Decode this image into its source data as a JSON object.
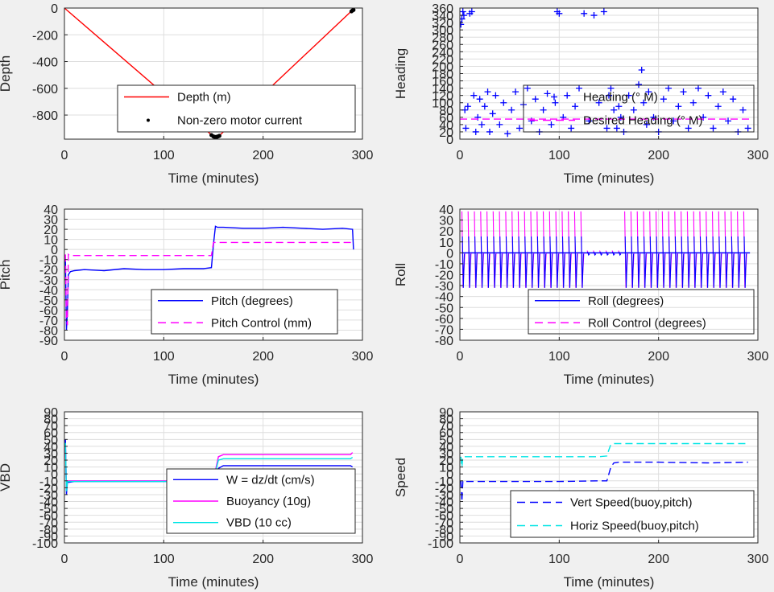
{
  "chart_data": [
    {
      "id": "depth",
      "type": "line",
      "xlabel": "Time (minutes)",
      "ylabel": "Depth",
      "xlim": [
        0,
        300
      ],
      "ylim": [
        -980,
        0
      ],
      "xticks": [
        0,
        100,
        200,
        300
      ],
      "yticks": [
        0,
        -200,
        -400,
        -600,
        -800
      ],
      "grid": true,
      "legend_location": "lower-right",
      "series": [
        {
          "name": "Depth (m)",
          "style": "solid",
          "color": "#ff0000",
          "marker": "none",
          "x": [
            0,
            150,
            152,
            155,
            290
          ],
          "y": [
            0,
            -960,
            -965,
            -960,
            -15
          ]
        },
        {
          "name": "Non-zero motor current",
          "style": "none",
          "color": "#000000",
          "marker": "dot",
          "x": [
            148,
            150,
            151,
            152,
            153,
            154,
            155,
            156,
            289,
            290,
            291
          ],
          "y": [
            -950,
            -960,
            -963,
            -965,
            -963,
            -962,
            -958,
            -955,
            -25,
            -18,
            -14
          ]
        }
      ]
    },
    {
      "id": "heading",
      "type": "scatter",
      "xlabel": "Time (minutes)",
      "ylabel": "Heading",
      "xlim": [
        0,
        300
      ],
      "ylim": [
        0,
        360
      ],
      "xticks": [
        0,
        100,
        200,
        300
      ],
      "yticks": [
        0,
        20,
        40,
        60,
        80,
        100,
        120,
        140,
        160,
        180,
        200,
        220,
        240,
        260,
        280,
        300,
        320,
        340,
        360
      ],
      "grid": true,
      "legend_location": "lower-right",
      "series": [
        {
          "name": "Heading (° M)",
          "style": "none",
          "color": "#0000ff",
          "marker": "plus",
          "x": [
            1,
            2,
            3,
            4,
            5,
            6,
            8,
            10,
            12,
            14,
            16,
            18,
            20,
            22,
            25,
            28,
            30,
            33,
            36,
            40,
            44,
            48,
            52,
            56,
            60,
            64,
            68,
            72,
            76,
            80,
            84,
            88,
            92,
            96,
            98,
            100,
            104,
            108,
            112,
            116,
            120,
            125,
            130,
            135,
            140,
            145,
            148,
            150,
            152,
            155,
            158,
            160,
            162,
            165,
            170,
            175,
            180,
            183,
            185,
            188,
            190,
            195,
            200,
            205,
            210,
            215,
            220,
            225,
            230,
            235,
            240,
            245,
            250,
            255,
            260,
            265,
            270,
            275,
            280,
            285,
            290
          ],
          "y": [
            315,
            330,
            350,
            340,
            80,
            30,
            90,
            345,
            350,
            120,
            20,
            60,
            110,
            40,
            90,
            130,
            20,
            70,
            120,
            40,
            100,
            15,
            80,
            130,
            30,
            95,
            140,
            50,
            110,
            20,
            80,
            125,
            40,
            100,
            350,
            345,
            60,
            120,
            30,
            90,
            140,
            345,
            50,
            340,
            100,
            350,
            30,
            120,
            140,
            80,
            30,
            90,
            60,
            20,
            120,
            80,
            150,
            190,
            100,
            40,
            130,
            60,
            20,
            110,
            140,
            50,
            90,
            130,
            30,
            100,
            140,
            60,
            120,
            30,
            90,
            130,
            50,
            110,
            20,
            80,
            30
          ]
        },
        {
          "name": "Desired Heading (° M)",
          "style": "dashed",
          "color": "#ff00ff",
          "marker": "none",
          "x": [
            0,
            50,
            100,
            150,
            200,
            250,
            295
          ],
          "y": [
            55,
            55,
            55,
            55,
            55,
            55,
            55
          ]
        }
      ]
    },
    {
      "id": "pitch",
      "type": "line",
      "xlabel": "Time (minutes)",
      "ylabel": "Pitch",
      "xlim": [
        0,
        300
      ],
      "ylim": [
        -90,
        40
      ],
      "xticks": [
        0,
        100,
        200,
        300
      ],
      "yticks": [
        40,
        30,
        20,
        10,
        0,
        -10,
        -20,
        -30,
        -40,
        -50,
        -60,
        -70,
        -80,
        -90
      ],
      "grid": true,
      "legend_location": "lower-right",
      "series": [
        {
          "name": "Pitch (degrees)",
          "style": "solid",
          "color": "#0000ff",
          "x": [
            1,
            2,
            3,
            4,
            6,
            10,
            20,
            40,
            60,
            80,
            100,
            120,
            140,
            148,
            150,
            152,
            154,
            160,
            180,
            200,
            220,
            240,
            260,
            280,
            290,
            291
          ],
          "y": [
            -10,
            -80,
            -60,
            -25,
            -22,
            -21,
            -20,
            -21,
            -19,
            -20,
            -20,
            -19,
            -19,
            -18,
            5,
            23,
            22,
            22,
            21,
            21,
            22,
            21,
            20,
            21,
            20,
            0
          ]
        },
        {
          "name": "Pitch Control (mm)",
          "style": "dashed",
          "color": "#ff00ff",
          "x": [
            1,
            2,
            3,
            4,
            5,
            148,
            150,
            155,
            290
          ],
          "y": [
            -5,
            -70,
            -75,
            -5,
            -6,
            -6,
            7,
            7,
            7
          ]
        }
      ]
    },
    {
      "id": "roll",
      "type": "line",
      "xlabel": "Time (minutes)",
      "ylabel": "Roll",
      "xlim": [
        0,
        300
      ],
      "ylim": [
        -80,
        40
      ],
      "xticks": [
        0,
        100,
        200,
        300
      ],
      "yticks": [
        40,
        30,
        20,
        10,
        0,
        -10,
        -20,
        -30,
        -40,
        -50,
        -60,
        -70,
        -80
      ],
      "grid": true,
      "legend_location": "lower-right",
      "series": [
        {
          "name": "Roll (degrees)",
          "style": "solid",
          "color": "#0000ff",
          "x": [],
          "y": []
        },
        {
          "name": "Roll Control (degrees)",
          "style": "dashed",
          "color": "#ff00ff",
          "x": [],
          "y": []
        }
      ]
    },
    {
      "id": "vbd",
      "type": "line",
      "xlabel": "Time (minutes)",
      "ylabel": "VBD",
      "xlim": [
        0,
        300
      ],
      "ylim": [
        -100,
        90
      ],
      "xticks": [
        0,
        100,
        200,
        300
      ],
      "yticks": [
        90,
        80,
        70,
        60,
        50,
        40,
        30,
        20,
        10,
        0,
        -10,
        -20,
        -30,
        -40,
        -50,
        -60,
        -70,
        -80,
        -90,
        -100
      ],
      "grid": true,
      "legend_location": "lower-right",
      "series": [
        {
          "name": "W = dz/dt (cm/s)",
          "style": "solid",
          "color": "#0000ff",
          "x": [
            1,
            2,
            3,
            5,
            10,
            50,
            100,
            145,
            150,
            155,
            160,
            200,
            250,
            288,
            290
          ],
          "y": [
            50,
            -30,
            -12,
            -12,
            -11,
            -11,
            -11,
            -11,
            -10,
            8,
            12,
            12,
            12,
            12,
            10
          ]
        },
        {
          "name": "Buoyancy (10g)",
          "style": "solid",
          "color": "#ff00ff",
          "x": [
            1,
            2,
            3,
            5,
            10,
            50,
            100,
            145,
            150,
            155,
            160,
            200,
            250,
            288,
            290
          ],
          "y": [
            40,
            -20,
            -10,
            -10,
            -10,
            -10,
            -10,
            -10,
            -8,
            25,
            28,
            28,
            28,
            28,
            31
          ]
        },
        {
          "name": "VBD (10 cc)",
          "style": "solid",
          "color": "#00e5e5",
          "x": [
            1,
            2,
            3,
            5,
            10,
            50,
            100,
            145,
            150,
            155,
            160,
            200,
            250,
            288,
            290
          ],
          "y": [
            45,
            -25,
            -11,
            -11,
            -11,
            -11,
            -11,
            -11,
            -9,
            20,
            22,
            22,
            22,
            22,
            24
          ]
        }
      ]
    },
    {
      "id": "speed",
      "type": "line",
      "xlabel": "Time (minutes)",
      "ylabel": "Speed",
      "xlim": [
        0,
        300
      ],
      "ylim": [
        -100,
        90
      ],
      "xticks": [
        0,
        100,
        200,
        300
      ],
      "yticks": [
        90,
        80,
        70,
        60,
        50,
        40,
        30,
        20,
        10,
        0,
        -10,
        -20,
        -30,
        -40,
        -50,
        -60,
        -70,
        -80,
        -90,
        -100
      ],
      "grid": true,
      "legend_location": "lower-right",
      "series": [
        {
          "name": "Vert Speed(buoy,pitch)",
          "style": "dashed",
          "color": "#0000ff",
          "x": [
            1,
            2,
            3,
            4,
            6,
            20,
            60,
            100,
            140,
            148,
            150,
            152,
            155,
            160,
            200,
            250,
            290
          ],
          "y": [
            -10,
            -40,
            -10,
            -11,
            -11,
            -11,
            -11,
            -11,
            -10,
            -10,
            0,
            10,
            16,
            17,
            17,
            16,
            17
          ]
        },
        {
          "name": "Horiz Speed(buoy,pitch)",
          "style": "dashed",
          "color": "#00e5e5",
          "x": [
            1,
            2,
            3,
            4,
            6,
            20,
            60,
            100,
            140,
            148,
            150,
            152,
            155,
            160,
            200,
            250,
            288,
            290
          ],
          "y": [
            25,
            10,
            25,
            25,
            25,
            25,
            25,
            25,
            25,
            26,
            35,
            43,
            44,
            44,
            44,
            44,
            44,
            48
          ]
        }
      ]
    }
  ]
}
